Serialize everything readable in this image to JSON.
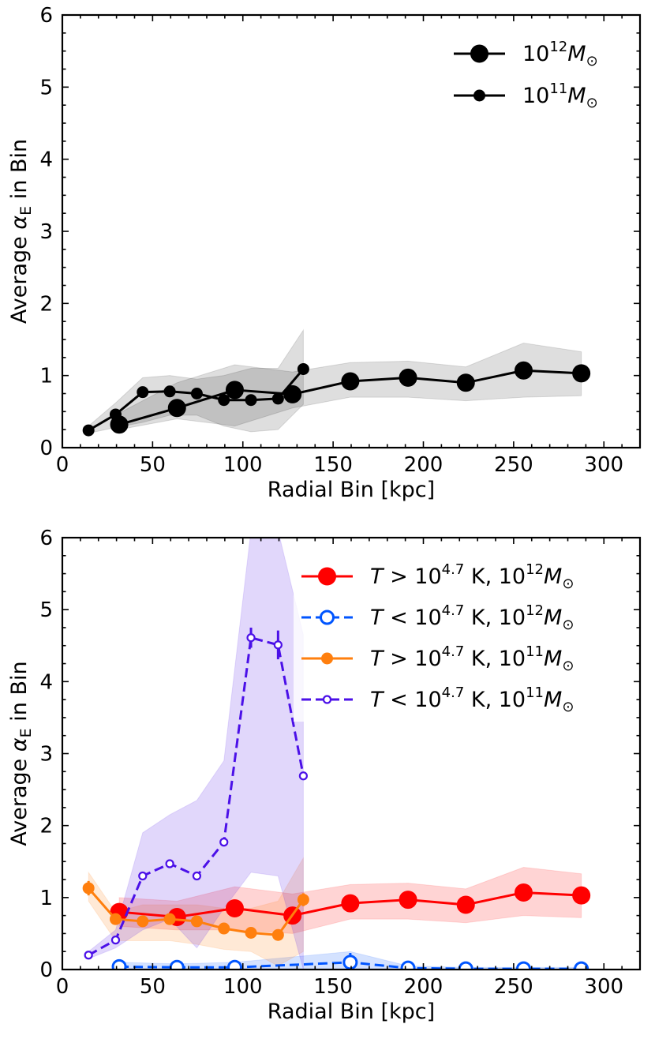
{
  "chart_data": [
    {
      "type": "line",
      "xlabel": "Radial Bin [kpc]",
      "ylabel": "Average αE in Bin",
      "ylabel_parts": {
        "prefix": "Average ",
        "symbol": "α",
        "subscript": "E",
        "suffix": " in Bin"
      },
      "xlim": [
        0,
        320
      ],
      "ylim": [
        0,
        6
      ],
      "xticks": [
        "0",
        "50",
        "100",
        "150",
        "200",
        "250",
        "300"
      ],
      "yticks": [
        "0",
        "1",
        "2",
        "3",
        "4",
        "5",
        "6"
      ],
      "legend_position": "top-right",
      "series": [
        {
          "name": "10^12 M☉",
          "legend": {
            "base": "10",
            "exp": "12",
            "sym": "M",
            "sub": "⊙"
          },
          "color": "#000000",
          "style": "solid",
          "marker": "filled-large",
          "x": [
            31.5,
            63.5,
            95.5,
            127.5,
            159.5,
            191.5,
            223.5,
            255.5,
            287.5
          ],
          "y": [
            0.32,
            0.55,
            0.8,
            0.74,
            0.92,
            0.97,
            0.9,
            1.07,
            1.03
          ],
          "err": [
            0.05,
            0.04,
            0.06,
            0.05,
            0.03,
            0.03,
            0.03,
            0.04,
            0.04
          ],
          "band_low": [
            0.25,
            0.4,
            0.3,
            0.55,
            0.7,
            0.7,
            0.65,
            0.7,
            0.72
          ],
          "band_high": [
            0.48,
            0.9,
            1.15,
            1.05,
            1.18,
            1.2,
            1.12,
            1.45,
            1.33
          ]
        },
        {
          "name": "10^11 M☉",
          "legend": {
            "base": "10",
            "exp": "11",
            "sym": "M",
            "sub": "⊙"
          },
          "color": "#000000",
          "style": "solid",
          "marker": "filled-small",
          "x": [
            14.5,
            29.5,
            44.5,
            59.5,
            74.5,
            89.5,
            104.5,
            119.5,
            133.5
          ],
          "y": [
            0.24,
            0.46,
            0.77,
            0.78,
            0.75,
            0.66,
            0.66,
            0.68,
            1.09
          ],
          "err": [
            0.02,
            0.03,
            0.07,
            0.06,
            0.05,
            0.04,
            0.04,
            0.05,
            0.08
          ],
          "band_low": [
            0.2,
            0.28,
            0.35,
            0.45,
            0.45,
            0.3,
            0.22,
            0.25,
            0.6
          ],
          "band_high": [
            0.3,
            0.62,
            0.97,
            1.0,
            0.95,
            1.0,
            1.1,
            1.1,
            1.63
          ]
        }
      ]
    },
    {
      "type": "line",
      "xlabel": "Radial Bin [kpc]",
      "ylabel": "Average αE in Bin",
      "ylabel_parts": {
        "prefix": "Average ",
        "symbol": "α",
        "subscript": "E",
        "suffix": " in Bin"
      },
      "xlim": [
        0,
        320
      ],
      "ylim": [
        0,
        6
      ],
      "xticks": [
        "0",
        "50",
        "100",
        "150",
        "200",
        "250",
        "300"
      ],
      "yticks": [
        "0",
        "1",
        "2",
        "3",
        "4",
        "5",
        "6"
      ],
      "legend_position": "top-right",
      "series": [
        {
          "name": "T > 10^4.7 K, 10^12 M☉",
          "legend": {
            "t": "T",
            "op": " > ",
            "base": "10",
            "exp": "4.7",
            "unit": " K, ",
            "base2": "10",
            "exp2": "12",
            "sym": "M",
            "sub": "⊙"
          },
          "color": "#ff0000",
          "style": "solid",
          "marker": "filled-large",
          "x": [
            31.5,
            63.5,
            95.5,
            127.5,
            159.5,
            191.5,
            223.5,
            255.5,
            287.5
          ],
          "y": [
            0.8,
            0.73,
            0.85,
            0.75,
            0.92,
            0.97,
            0.9,
            1.07,
            1.03
          ],
          "err": [
            0.04,
            0.03,
            0.05,
            0.04,
            0.03,
            0.03,
            0.03,
            0.04,
            0.04
          ],
          "band_low": [
            0.6,
            0.55,
            0.55,
            0.5,
            0.7,
            0.7,
            0.65,
            0.75,
            0.72
          ],
          "band_high": [
            1.0,
            0.95,
            1.15,
            1.05,
            1.18,
            1.2,
            1.12,
            1.42,
            1.33
          ]
        },
        {
          "name": "T < 10^4.7 K, 10^12 M☉",
          "legend": {
            "t": "T",
            "op": " < ",
            "base": "10",
            "exp": "4.7",
            "unit": " K, ",
            "base2": "10",
            "exp2": "12",
            "sym": "M",
            "sub": "⊙"
          },
          "color": "#0055ff",
          "style": "dashed",
          "marker": "open-large",
          "x": [
            31.5,
            63.5,
            95.5,
            159.5,
            191.5,
            223.5,
            255.5,
            287.5
          ],
          "y": [
            0.04,
            0.03,
            0.03,
            0.1,
            0.02,
            0.01,
            0.01,
            0.01
          ],
          "err": [
            0.02,
            0.02,
            0.03,
            0.13,
            0.01,
            0.01,
            0.01,
            0.01
          ],
          "band_low": [
            0.0,
            0.0,
            0.0,
            0.0,
            0.0,
            0.0,
            0.0,
            0.0
          ],
          "band_high": [
            0.1,
            0.08,
            0.1,
            0.25,
            0.05,
            0.03,
            0.03,
            0.03
          ]
        },
        {
          "name": "T > 10^4.7 K, 10^11 M☉",
          "legend": {
            "t": "T",
            "op": " > ",
            "base": "10",
            "exp": "4.7",
            "unit": " K, ",
            "base2": "10",
            "exp2": "11",
            "sym": "M",
            "sub": "⊙"
          },
          "color": "#ff7f0e",
          "style": "solid",
          "marker": "filled-small",
          "x": [
            14.5,
            29.5,
            44.5,
            59.5,
            74.5,
            89.5,
            104.5,
            119.5,
            133.5
          ],
          "y": [
            1.13,
            0.7,
            0.67,
            0.7,
            0.67,
            0.57,
            0.51,
            0.48,
            0.97
          ],
          "err": [
            0.1,
            0.05,
            0.05,
            0.05,
            0.05,
            0.05,
            0.05,
            0.05,
            0.09
          ],
          "band_low": [
            0.95,
            0.4,
            0.4,
            0.4,
            0.35,
            0.28,
            0.25,
            0.05,
            0.25
          ],
          "band_high": [
            1.35,
            0.8,
            0.9,
            0.9,
            0.9,
            0.85,
            0.85,
            0.95,
            1.55
          ]
        },
        {
          "name": "T < 10^4.7 K, 10^11 M☉",
          "legend": {
            "t": "T",
            "op": " < ",
            "base": "10",
            "exp": "4.7",
            "unit": " K, ",
            "base2": "10",
            "exp2": "11",
            "sym": "M",
            "sub": "⊙"
          },
          "color": "#4b10e8",
          "style": "dashed",
          "marker": "open-small",
          "x": [
            14.5,
            29.5,
            44.5,
            59.5,
            74.5,
            89.5,
            104.5,
            119.5,
            133.5
          ],
          "y": [
            0.2,
            0.41,
            1.3,
            1.47,
            1.3,
            1.77,
            4.61,
            4.51,
            2.69
          ],
          "err": [
            0.02,
            0.04,
            0.05,
            0.06,
            0.06,
            0.06,
            0.14,
            0.2,
            0.05
          ],
          "band_low": [
            0.15,
            0.3,
            0.55,
            0.7,
            0.3,
            0.85,
            1.35,
            1.3,
            0.0
          ],
          "band_high": [
            0.25,
            0.55,
            1.9,
            2.15,
            2.35,
            2.9,
            6.1,
            6.1,
            4.65
          ]
        }
      ]
    }
  ]
}
